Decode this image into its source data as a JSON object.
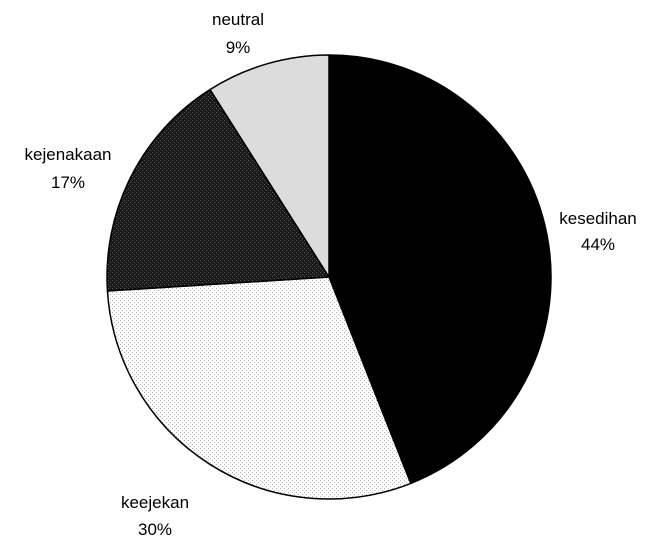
{
  "chart_data": {
    "type": "pie",
    "title": "",
    "start": "top",
    "direction": "clockwise",
    "slices": [
      {
        "label": "kesedihan",
        "value": 44,
        "percent_label": "44%",
        "color": "#000000"
      },
      {
        "label": "keejekan",
        "value": 30,
        "percent_label": "30%",
        "color": "#ffffff",
        "pattern": "light-dots"
      },
      {
        "label": "kejenakaan",
        "value": 17,
        "percent_label": "17%",
        "color": "#1a1a1a",
        "pattern": "dark-dots"
      },
      {
        "label": "neutral",
        "value": 9,
        "percent_label": "9%",
        "color": "#dcdcdc"
      }
    ]
  }
}
